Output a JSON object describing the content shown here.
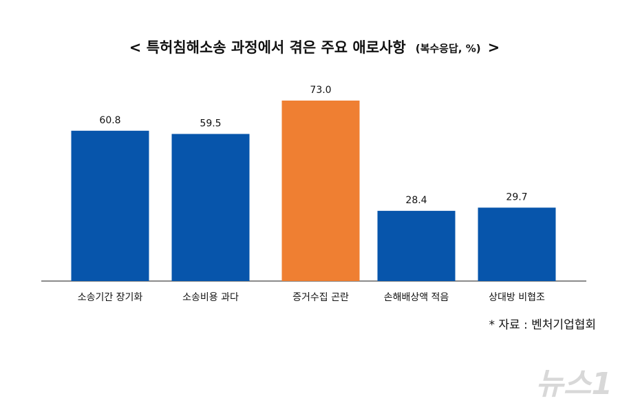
{
  "chart_data": {
    "type": "bar",
    "title": "< 특허침해소송 과정에서 겪은 주요 애로사항",
    "subtitle": "(복수응답, %)",
    "title_end": ">",
    "categories": [
      "소송기간 장기화",
      "소송비용 과다",
      "증거수집 곤란",
      "손해배상액 적음",
      "상대방 비협조"
    ],
    "values": [
      60.8,
      59.5,
      73.0,
      28.4,
      29.7
    ],
    "value_labels": [
      "60.8",
      "59.5",
      "73.0",
      "28.4",
      "29.7"
    ],
    "colors": [
      "#0755ab",
      "#0755ab",
      "#ef7f32",
      "#0755ab",
      "#0755ab"
    ],
    "source": "* 자료 : 벤처기업협회",
    "watermark": "뉴스1"
  }
}
